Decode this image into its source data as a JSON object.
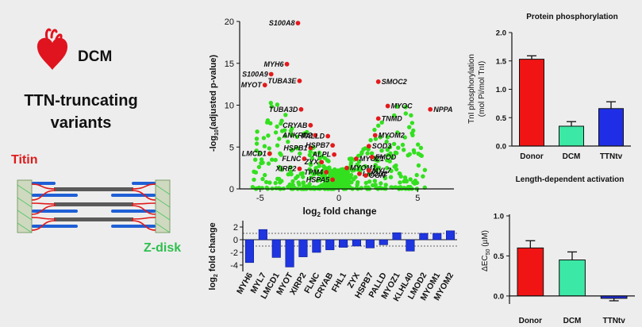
{
  "left_panel": {
    "condition": "DCM",
    "title_line1": "TTN-truncating",
    "title_line2": "variants",
    "titin_label": "Titin",
    "zdisk_label": "Z-disk",
    "heart_icon": "heart-icon",
    "colors": {
      "heart": "#e0141e",
      "titin": "#e01a1a",
      "zdisk": "#2fbf4f"
    }
  },
  "chart_data": [
    {
      "type": "scatter",
      "id": "volcano",
      "xlabel": "log2 fold change",
      "ylabel": "-log10(adjusted p-value)",
      "xlim": [
        -6.3,
        7.3
      ],
      "ylim": [
        0,
        20
      ],
      "xticks": [
        -5,
        0,
        5
      ],
      "yticks": [
        0,
        5,
        10,
        15,
        20
      ],
      "point_color": "#33e01f",
      "highlight_color": "#e31a1c",
      "highlighted_genes": [
        {
          "label": "S100A8",
          "x": -2.6,
          "y": 19.8
        },
        {
          "label": "MYH6",
          "x": -3.3,
          "y": 14.9
        },
        {
          "label": "S100A9",
          "x": -4.3,
          "y": 13.7
        },
        {
          "label": "TUBA3E",
          "x": -2.5,
          "y": 12.9
        },
        {
          "label": "MYOT",
          "x": -4.7,
          "y": 12.4
        },
        {
          "label": "TUBA3D",
          "x": -2.4,
          "y": 9.5
        },
        {
          "label": "CRYAB",
          "x": -1.8,
          "y": 7.6
        },
        {
          "label": "ANKRD2",
          "x": -1.5,
          "y": 6.4
        },
        {
          "label": "HSPB1",
          "x": -1.8,
          "y": 4.9
        },
        {
          "label": "LMCD1",
          "x": -4.4,
          "y": 4.2
        },
        {
          "label": "FLNC",
          "x": -2.2,
          "y": 3.6
        },
        {
          "label": "ZYX",
          "x": -1.1,
          "y": 3.2
        },
        {
          "label": "XIRP2",
          "x": -2.5,
          "y": 2.4
        },
        {
          "label": "TPM4",
          "x": -0.8,
          "y": 2.0
        },
        {
          "label": "HSPA5",
          "x": -0.4,
          "y": 1.1
        },
        {
          "label": "PALLD",
          "x": -0.7,
          "y": 6.3
        },
        {
          "label": "HSPB7",
          "x": -0.4,
          "y": 5.2
        },
        {
          "label": "ALPL",
          "x": -0.3,
          "y": 4.1
        },
        {
          "label": "MYOZ1",
          "x": 1.1,
          "y": 3.6
        },
        {
          "label": "MYOM1",
          "x": 0.5,
          "y": 2.5
        },
        {
          "label": "LMOD2",
          "x": 1.3,
          "y": 1.8
        },
        {
          "label": "MYL7",
          "x": 1.9,
          "y": 2.2
        },
        {
          "label": "OGN",
          "x": 1.7,
          "y": 1.6
        },
        {
          "label": "SOD3",
          "x": 1.9,
          "y": 5.1
        },
        {
          "label": "FMOD",
          "x": 2.1,
          "y": 3.8
        },
        {
          "label": "MYOM2",
          "x": 2.3,
          "y": 6.4
        },
        {
          "label": "TNMD",
          "x": 2.5,
          "y": 8.4
        },
        {
          "label": "MYOC",
          "x": 3.1,
          "y": 9.9
        },
        {
          "label": "SMOC2",
          "x": 2.5,
          "y": 12.8
        },
        {
          "label": "NPPA",
          "x": 5.8,
          "y": 9.5
        }
      ]
    },
    {
      "type": "bar",
      "id": "fold_change_bars",
      "ylabel": "log2 fold change",
      "ylim": [
        -5,
        3
      ],
      "yticks": [
        -4,
        -2,
        0,
        2
      ],
      "threshold_lines": [
        1,
        -1
      ],
      "bar_color": "#1f35e0",
      "categories": [
        "MYH6",
        "MYL7",
        "LMCD1",
        "MYOT",
        "XIRP2",
        "FLNC",
        "CRYAB",
        "FHL1",
        "ZYX",
        "HSPB7",
        "PALLD",
        "MYOZ1",
        "KLHL40",
        "LMOD2",
        "MYOM1",
        "MYOM2"
      ],
      "values": [
        -3.6,
        1.6,
        -2.8,
        -4.3,
        -2.7,
        -2.0,
        -1.6,
        -1.2,
        -1.0,
        -1.3,
        -0.8,
        1.1,
        -1.8,
        1.0,
        1.0,
        1.4
      ]
    },
    {
      "type": "bar",
      "id": "protein_phosphorylation",
      "title": "Protein phosphorylation",
      "ylabel": "TnI phosphorylation (mol Pi/mol TnI)",
      "ylim": [
        0,
        2.0
      ],
      "yticks": [
        "0.0",
        "0.5",
        "1.0",
        "1.5",
        "2.0"
      ],
      "categories": [
        "Donor",
        "DCM",
        "TTNtv"
      ],
      "values": [
        1.53,
        0.35,
        0.66
      ],
      "errors": [
        0.06,
        0.08,
        0.12
      ],
      "colors": [
        "#f01414",
        "#3ce8a5",
        "#1f2ee6"
      ]
    },
    {
      "type": "bar",
      "id": "length_dependent_activation",
      "title": "Length-dependent activation",
      "ylabel": "ΔEC50 (µM)",
      "ylim": [
        -0.1,
        1.0
      ],
      "yticks": [
        "0.0",
        "0.5",
        "1.0"
      ],
      "categories": [
        "Donor",
        "DCM",
        "TTNtv"
      ],
      "values": [
        0.6,
        0.45,
        -0.03
      ],
      "errors": [
        0.09,
        0.1,
        0.03
      ],
      "colors": [
        "#f01414",
        "#3ce8a5",
        "#1f2ee6"
      ]
    }
  ]
}
